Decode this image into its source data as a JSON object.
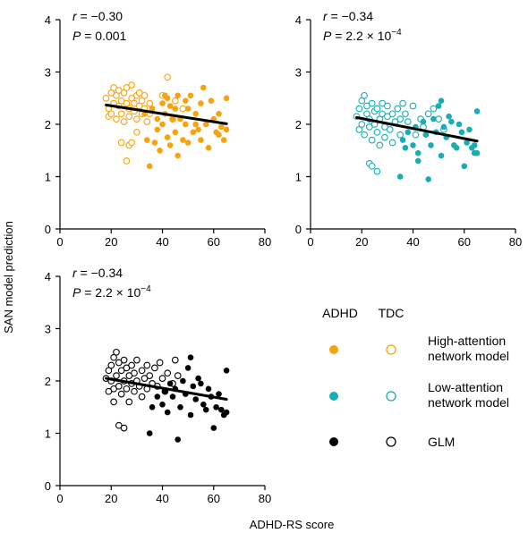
{
  "figure": {
    "ylabel": "SAN model prediction",
    "xlabel": "ADHD-RS score"
  },
  "legend": {
    "col_adhd": "ADHD",
    "col_tdc": "TDC",
    "rows": [
      {
        "label_line1": "High-attention",
        "label_line2": "network model",
        "color": "#f5a30f"
      },
      {
        "label_line1": "Low-attention",
        "label_line2": "network model",
        "color": "#1aacb5"
      },
      {
        "label_line1": "GLM",
        "label_line2": "",
        "color": "#000000"
      }
    ]
  },
  "chart_data": [
    {
      "type": "scatter",
      "color": "#f5a30f",
      "stats": {
        "r_label": "r",
        "r_value": " = −0.30",
        "p_label": "P",
        "p_value": " = 0.001",
        "p_exp": ""
      },
      "xlim": [
        0,
        80
      ],
      "ylim": [
        0,
        4
      ],
      "xticks": [
        0,
        20,
        40,
        60,
        80
      ],
      "yticks": [
        0,
        1,
        2,
        3,
        4
      ],
      "fit_line": [
        [
          18,
          2.37
        ],
        [
          65,
          2.01
        ]
      ],
      "series": [
        {
          "group": "TDC",
          "filled": false,
          "points": [
            [
              18,
              2.5
            ],
            [
              19,
              2.3
            ],
            [
              19,
              2.15
            ],
            [
              20,
              2.6
            ],
            [
              20,
              2.2
            ],
            [
              21,
              2.7
            ],
            [
              21,
              2.4
            ],
            [
              22,
              2.55
            ],
            [
              22,
              2.1
            ],
            [
              23,
              2.65
            ],
            [
              23,
              2.35
            ],
            [
              24,
              2.45
            ],
            [
              24,
              2.2
            ],
            [
              25,
              2.6
            ],
            [
              25,
              2.05
            ],
            [
              26,
              2.4
            ],
            [
              26,
              2.7
            ],
            [
              27,
              2.3
            ],
            [
              27,
              2.15
            ],
            [
              28,
              2.5
            ],
            [
              28,
              2.75
            ],
            [
              29,
              2.4
            ],
            [
              29,
              2.25
            ],
            [
              30,
              2.55
            ],
            [
              30,
              2.1
            ],
            [
              31,
              2.35
            ],
            [
              31,
              2.6
            ],
            [
              32,
              2.2
            ],
            [
              32,
              2.45
            ],
            [
              33,
              2.3
            ],
            [
              33,
              2.55
            ],
            [
              34,
              2.05
            ],
            [
              35,
              2.4
            ],
            [
              35,
              2.2
            ],
            [
              24,
              1.65
            ],
            [
              27,
              1.6
            ],
            [
              28,
              1.65
            ],
            [
              30,
              1.85
            ],
            [
              26,
              1.3
            ],
            [
              42,
              2.9
            ],
            [
              45,
              2.45
            ],
            [
              48,
              2.3
            ],
            [
              40,
              2.55
            ],
            [
              44,
              2.1
            ]
          ]
        },
        {
          "group": "ADHD",
          "filled": true,
          "points": [
            [
              33,
              2.2
            ],
            [
              34,
              1.7
            ],
            [
              35,
              1.2
            ],
            [
              36,
              2.3
            ],
            [
              37,
              1.65
            ],
            [
              38,
              2.1
            ],
            [
              38,
              1.9
            ],
            [
              39,
              1.5
            ],
            [
              40,
              2.4
            ],
            [
              40,
              2.0
            ],
            [
              41,
              2.55
            ],
            [
              41,
              2.2
            ],
            [
              42,
              1.75
            ],
            [
              42,
              2.5
            ],
            [
              43,
              2.35
            ],
            [
              43,
              1.6
            ],
            [
              44,
              2.1
            ],
            [
              45,
              2.3
            ],
            [
              45,
              1.85
            ],
            [
              46,
              1.4
            ],
            [
              46,
              2.55
            ],
            [
              47,
              2.1
            ],
            [
              48,
              1.7
            ],
            [
              49,
              2.45
            ],
            [
              49,
              2.0
            ],
            [
              50,
              2.3
            ],
            [
              50,
              1.65
            ],
            [
              51,
              2.55
            ],
            [
              52,
              1.85
            ],
            [
              53,
              2.2
            ],
            [
              53,
              2.0
            ],
            [
              54,
              1.9
            ],
            [
              55,
              2.4
            ],
            [
              55,
              1.7
            ],
            [
              56,
              2.7
            ],
            [
              57,
              2.0
            ],
            [
              58,
              1.55
            ],
            [
              59,
              2.45
            ],
            [
              60,
              2.1
            ],
            [
              61,
              1.85
            ],
            [
              62,
              1.8
            ],
            [
              62,
              2.2
            ],
            [
              63,
              1.95
            ],
            [
              64,
              1.7
            ],
            [
              65,
              2.5
            ],
            [
              65,
              1.9
            ]
          ]
        }
      ]
    },
    {
      "type": "scatter",
      "color": "#1aacb5",
      "stats": {
        "r_label": "r",
        "r_value": " = −0.34",
        "p_label": "P",
        "p_value": " = 2.2 × 10",
        "p_exp": "−4"
      },
      "xlim": [
        0,
        80
      ],
      "ylim": [
        0,
        4
      ],
      "xticks": [
        0,
        20,
        40,
        60,
        80
      ],
      "yticks": [
        0,
        1,
        2,
        3,
        4
      ],
      "fit_line": [
        [
          18,
          2.13
        ],
        [
          65,
          1.68
        ]
      ],
      "series": [
        {
          "group": "TDC",
          "filled": false,
          "points": [
            [
              18,
              2.15
            ],
            [
              19,
              1.9
            ],
            [
              19,
              2.3
            ],
            [
              20,
              2.0
            ],
            [
              20,
              2.45
            ],
            [
              21,
              2.55
            ],
            [
              21,
              1.8
            ],
            [
              22,
              2.2
            ],
            [
              22,
              2.35
            ],
            [
              23,
              1.95
            ],
            [
              23,
              2.1
            ],
            [
              24,
              2.4
            ],
            [
              24,
              1.7
            ],
            [
              25,
              2.25
            ],
            [
              25,
              2.0
            ],
            [
              26,
              1.85
            ],
            [
              26,
              2.3
            ],
            [
              27,
              2.1
            ],
            [
              27,
              1.6
            ],
            [
              28,
              2.2
            ],
            [
              28,
              2.4
            ],
            [
              29,
              1.95
            ],
            [
              29,
              1.75
            ],
            [
              30,
              2.15
            ],
            [
              30,
              2.35
            ],
            [
              31,
              1.9
            ],
            [
              32,
              2.2
            ],
            [
              32,
              1.65
            ],
            [
              33,
              2.05
            ],
            [
              34,
              2.3
            ],
            [
              35,
              1.8
            ],
            [
              35,
              2.1
            ],
            [
              36,
              2.4
            ],
            [
              23,
              1.25
            ],
            [
              24,
              1.2
            ],
            [
              26,
              1.1
            ],
            [
              37,
              2.2
            ],
            [
              38,
              2.05
            ],
            [
              40,
              2.35
            ],
            [
              41,
              1.8
            ],
            [
              43,
              2.1
            ],
            [
              44,
              1.95
            ],
            [
              46,
              2.2
            ],
            [
              48,
              2.3
            ],
            [
              50,
              2.1
            ],
            [
              52,
              1.9
            ]
          ]
        },
        {
          "group": "ADHD",
          "filled": true,
          "points": [
            [
              35,
              1.0
            ],
            [
              36,
              1.7
            ],
            [
              37,
              1.55
            ],
            [
              38,
              1.85
            ],
            [
              40,
              1.6
            ],
            [
              41,
              1.95
            ],
            [
              42,
              1.45
            ],
            [
              42,
              1.3
            ],
            [
              44,
              2.05
            ],
            [
              45,
              1.8
            ],
            [
              46,
              0.95
            ],
            [
              47,
              1.6
            ],
            [
              48,
              2.1
            ],
            [
              49,
              1.85
            ],
            [
              50,
              2.35
            ],
            [
              51,
              2.45
            ],
            [
              51,
              1.4
            ],
            [
              52,
              1.95
            ],
            [
              53,
              1.75
            ],
            [
              54,
              2.15
            ],
            [
              55,
              2.05
            ],
            [
              56,
              1.6
            ],
            [
              57,
              1.55
            ],
            [
              58,
              2.0
            ],
            [
              59,
              1.85
            ],
            [
              60,
              1.2
            ],
            [
              61,
              1.65
            ],
            [
              62,
              1.9
            ],
            [
              63,
              1.55
            ],
            [
              64,
              1.45
            ],
            [
              64,
              1.6
            ],
            [
              65,
              2.25
            ],
            [
              65,
              1.45
            ]
          ]
        }
      ]
    },
    {
      "type": "scatter",
      "color": "#000000",
      "stats": {
        "r_label": "r",
        "r_value": " = −0.34",
        "p_label": "P",
        "p_value": " = 2.2 × 10",
        "p_exp": "−4"
      },
      "xlim": [
        0,
        80
      ],
      "ylim": [
        0,
        4
      ],
      "xticks": [
        0,
        20,
        40,
        60,
        80
      ],
      "yticks": [
        0,
        1,
        2,
        3,
        4
      ],
      "fit_line": [
        [
          18,
          2.05
        ],
        [
          65,
          1.65
        ]
      ],
      "series": [
        {
          "group": "TDC",
          "filled": false,
          "points": [
            [
              18,
              2.05
            ],
            [
              19,
              1.8
            ],
            [
              19,
              2.2
            ],
            [
              20,
              2.0
            ],
            [
              20,
              2.3
            ],
            [
              21,
              2.45
            ],
            [
              21,
              1.85
            ],
            [
              22,
              2.55
            ],
            [
              22,
              2.1
            ],
            [
              23,
              1.9
            ],
            [
              23,
              2.35
            ],
            [
              24,
              2.2
            ],
            [
              24,
              1.75
            ],
            [
              25,
              2.4
            ],
            [
              25,
              2.0
            ],
            [
              26,
              1.85
            ],
            [
              26,
              2.25
            ],
            [
              27,
              2.1
            ],
            [
              27,
              1.6
            ],
            [
              28,
              2.3
            ],
            [
              28,
              1.95
            ],
            [
              29,
              2.15
            ],
            [
              29,
              1.8
            ],
            [
              30,
              2.4
            ],
            [
              30,
              2.0
            ],
            [
              31,
              1.9
            ],
            [
              32,
              2.2
            ],
            [
              32,
              1.7
            ],
            [
              33,
              2.05
            ],
            [
              34,
              2.3
            ],
            [
              34,
              1.85
            ],
            [
              35,
              2.1
            ],
            [
              36,
              1.95
            ],
            [
              37,
              2.25
            ],
            [
              38,
              1.9
            ],
            [
              39,
              2.35
            ],
            [
              40,
              2.05
            ],
            [
              41,
              1.8
            ],
            [
              42,
              2.15
            ],
            [
              44,
              1.95
            ],
            [
              45,
              2.4
            ],
            [
              46,
              2.1
            ],
            [
              23,
              1.15
            ],
            [
              25,
              1.1
            ],
            [
              21,
              1.6
            ]
          ]
        },
        {
          "group": "ADHD",
          "filled": true,
          "points": [
            [
              35,
              1.0
            ],
            [
              36,
              1.5
            ],
            [
              38,
              1.7
            ],
            [
              40,
              1.55
            ],
            [
              41,
              1.8
            ],
            [
              42,
              1.4
            ],
            [
              43,
              1.95
            ],
            [
              44,
              1.7
            ],
            [
              45,
              1.85
            ],
            [
              46,
              0.88
            ],
            [
              47,
              1.5
            ],
            [
              48,
              2.0
            ],
            [
              49,
              1.75
            ],
            [
              50,
              2.25
            ],
            [
              51,
              2.45
            ],
            [
              51,
              1.35
            ],
            [
              52,
              1.9
            ],
            [
              53,
              1.65
            ],
            [
              54,
              2.05
            ],
            [
              55,
              1.95
            ],
            [
              56,
              1.55
            ],
            [
              57,
              1.45
            ],
            [
              58,
              1.85
            ],
            [
              59,
              1.7
            ],
            [
              60,
              1.1
            ],
            [
              61,
              1.5
            ],
            [
              62,
              1.75
            ],
            [
              63,
              1.45
            ],
            [
              64,
              1.35
            ],
            [
              65,
              2.2
            ],
            [
              65,
              1.4
            ]
          ]
        }
      ]
    }
  ]
}
